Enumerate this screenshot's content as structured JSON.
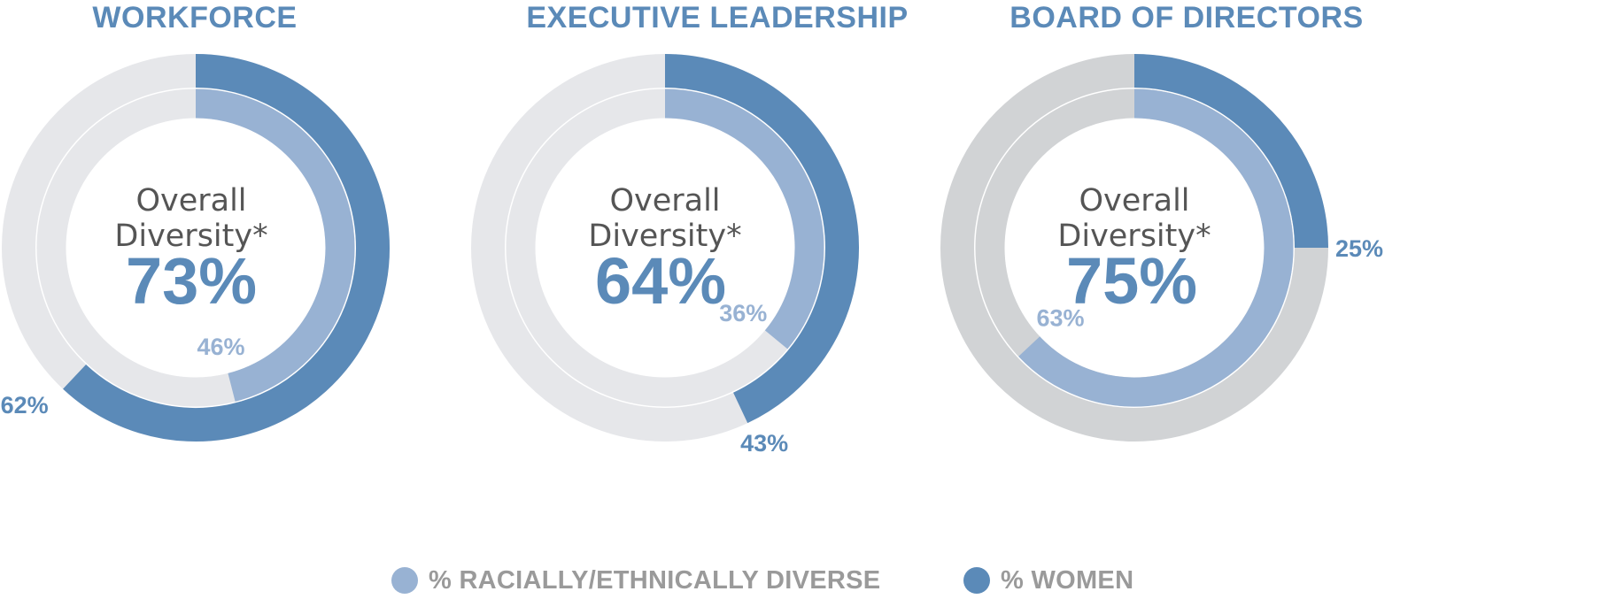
{
  "chart_data": [
    {
      "type": "donut",
      "title": "WORKFORCE",
      "center_label_line1": "Overall",
      "center_label_line2": "Diversity*",
      "center_value": "73%",
      "series": [
        {
          "name": "% WOMEN",
          "ring": "outer",
          "value": 62,
          "label": "62%"
        },
        {
          "name": "% RACIALLY/ETHNICALLY DIVERSE",
          "ring": "inner",
          "value": 46,
          "label": "46%"
        }
      ]
    },
    {
      "type": "donut",
      "title": "EXECUTIVE LEADERSHIP",
      "center_label_line1": "Overall",
      "center_label_line2": "Diversity*",
      "center_value": "64%",
      "series": [
        {
          "name": "% WOMEN",
          "ring": "outer",
          "value": 43,
          "label": "43%"
        },
        {
          "name": "% RACIALLY/ETHNICALLY DIVERSE",
          "ring": "inner",
          "value": 36,
          "label": "36%"
        }
      ]
    },
    {
      "type": "donut",
      "title": "BOARD OF DIRECTORS",
      "center_label_line1": "Overall",
      "center_label_line2": "Diversity*",
      "center_value": "75%",
      "series": [
        {
          "name": "% WOMEN",
          "ring": "outer",
          "value": 25,
          "label": "25%"
        },
        {
          "name": "% RACIALLY/ETHNICALLY DIVERSE",
          "ring": "inner",
          "value": 63,
          "label": "63%"
        }
      ]
    }
  ],
  "legend": [
    {
      "label": "% RACIALLY/ETHNICALLY DIVERSE",
      "color": "#98b2d3"
    },
    {
      "label": "% WOMEN",
      "color": "#5b8ab8"
    }
  ],
  "colors": {
    "women": "#5b8ab8",
    "diverse": "#98b2d3",
    "track_light": "#e6e7ea",
    "track_board": "#d1d3d5",
    "title": "#5b8ab8",
    "center_text": "#555555"
  }
}
